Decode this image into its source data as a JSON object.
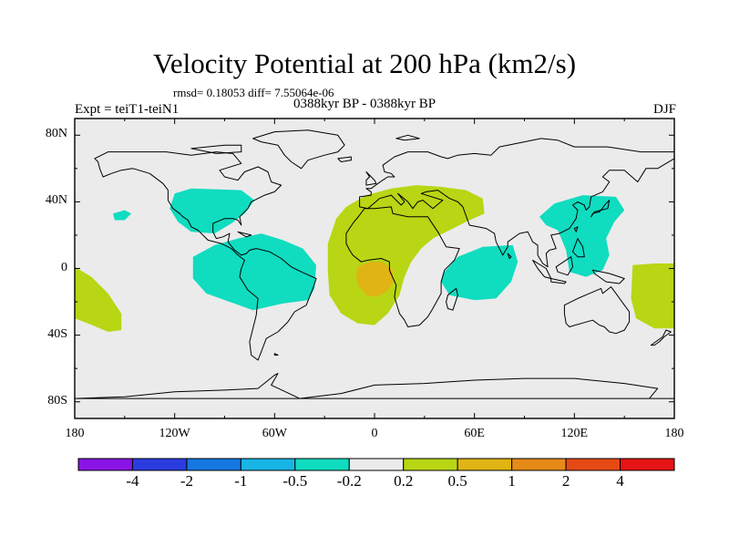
{
  "title": "Velocity Potential at 200 hPa (km2/s)",
  "stats_line": "rmsd= 0.18053 diff= 7.55064e-06",
  "experiment": "Expt = teiT1-teiN1",
  "period": "0388kyr BP - 0388kyr BP",
  "season": "DJF",
  "map": {
    "projection": "cylindrical equidistant",
    "lon_range": [
      -180,
      180
    ],
    "lat_range": [
      -90,
      90
    ],
    "lat_labels": [
      {
        "lat": 80,
        "text": "80N"
      },
      {
        "lat": 40,
        "text": "40N"
      },
      {
        "lat": 0,
        "text": "0"
      },
      {
        "lat": -40,
        "text": "40S"
      },
      {
        "lat": -80,
        "text": "80S"
      }
    ],
    "lon_labels": [
      {
        "lon": -180,
        "text": "180"
      },
      {
        "lon": -120,
        "text": "120W"
      },
      {
        "lon": -60,
        "text": "60W"
      },
      {
        "lon": 0,
        "text": "0"
      },
      {
        "lon": 60,
        "text": "60E"
      },
      {
        "lon": 120,
        "text": "120E"
      },
      {
        "lon": 180,
        "text": "180"
      }
    ],
    "background_color": "#ebebeb"
  },
  "colorbar": {
    "colors": [
      "#8a14e6",
      "#2a3ce0",
      "#1478e0",
      "#18b4e6",
      "#10dcc0",
      "#ebebeb",
      "#b8d614",
      "#e0b414",
      "#e68a18",
      "#e64a14",
      "#e61414"
    ],
    "labels": [
      "-4",
      "-2",
      "-1",
      "-0.5",
      "-0.2",
      "0.2",
      "0.5",
      "1",
      "2",
      "4"
    ]
  },
  "anomaly_regions": [
    {
      "name": "north-pacific-small",
      "level": "-0.2",
      "color": "#10dcc0",
      "polygon": [
        [
          -157,
          33
        ],
        [
          -150,
          35
        ],
        [
          -146,
          33
        ],
        [
          -150,
          29
        ],
        [
          -156,
          29
        ]
      ]
    },
    {
      "name": "north-atlantic-west",
      "level": "-0.2",
      "color": "#10dcc0",
      "polygon": [
        [
          -120,
          45
        ],
        [
          -110,
          48
        ],
        [
          -80,
          47
        ],
        [
          -72,
          41
        ],
        [
          -78,
          33
        ],
        [
          -86,
          27
        ],
        [
          -96,
          21
        ],
        [
          -110,
          22
        ],
        [
          -118,
          28
        ],
        [
          -123,
          36
        ]
      ]
    },
    {
      "name": "south-america-tropical",
      "level": "-0.2",
      "color": "#10dcc0",
      "polygon": [
        [
          -109,
          7
        ],
        [
          -96,
          14
        ],
        [
          -82,
          18
        ],
        [
          -68,
          21
        ],
        [
          -55,
          17
        ],
        [
          -43,
          12
        ],
        [
          -35,
          2
        ],
        [
          -36,
          -12
        ],
        [
          -40,
          -19
        ],
        [
          -55,
          -21
        ],
        [
          -73,
          -25
        ],
        [
          -87,
          -20
        ],
        [
          -101,
          -15
        ],
        [
          -109,
          -6
        ]
      ]
    },
    {
      "name": "east-pacific-positive",
      "level": "0.2",
      "color": "#b8d614",
      "polygon": [
        [
          -180,
          1
        ],
        [
          -170,
          -5
        ],
        [
          -160,
          -15
        ],
        [
          -152,
          -27
        ],
        [
          -152,
          -37
        ],
        [
          -160,
          -38
        ],
        [
          -172,
          -33
        ],
        [
          -180,
          -30
        ]
      ]
    },
    {
      "name": "dateline-positive",
      "level": "0.2",
      "color": "#b8d614",
      "polygon": [
        [
          155,
          2
        ],
        [
          168,
          3
        ],
        [
          180,
          3
        ],
        [
          180,
          -36
        ],
        [
          168,
          -36
        ],
        [
          157,
          -30
        ],
        [
          154,
          -18
        ]
      ]
    },
    {
      "name": "africa-positive",
      "level": "0.2",
      "color": "#b8d614",
      "polygon": [
        [
          -17,
          37
        ],
        [
          -5,
          44
        ],
        [
          10,
          48
        ],
        [
          25,
          50
        ],
        [
          40,
          49
        ],
        [
          55,
          47
        ],
        [
          65,
          42
        ],
        [
          66,
          33
        ],
        [
          55,
          28
        ],
        [
          45,
          23
        ],
        [
          35,
          18
        ],
        [
          28,
          12
        ],
        [
          22,
          4
        ],
        [
          18,
          -5
        ],
        [
          15,
          -16
        ],
        [
          8,
          -27
        ],
        [
          0,
          -34
        ],
        [
          -10,
          -33
        ],
        [
          -20,
          -27
        ],
        [
          -27,
          -16
        ],
        [
          -28,
          -2
        ],
        [
          -28,
          15
        ],
        [
          -23,
          30
        ]
      ]
    },
    {
      "name": "africa-core",
      "level": "0.5",
      "color": "#e0b414",
      "polygon": [
        [
          -10,
          1
        ],
        [
          -3,
          4
        ],
        [
          5,
          4
        ],
        [
          11,
          -1
        ],
        [
          11,
          -9
        ],
        [
          7,
          -14
        ],
        [
          1,
          -17
        ],
        [
          -5,
          -16
        ],
        [
          -10,
          -10
        ],
        [
          -11,
          -4
        ]
      ]
    },
    {
      "name": "indian-ocean-negative",
      "level": "-0.2",
      "color": "#10dcc0",
      "polygon": [
        [
          42,
          -2
        ],
        [
          50,
          7
        ],
        [
          65,
          13
        ],
        [
          83,
          14
        ],
        [
          86,
          4
        ],
        [
          82,
          -8
        ],
        [
          73,
          -18
        ],
        [
          60,
          -19
        ],
        [
          45,
          -16
        ],
        [
          40,
          -8
        ]
      ]
    },
    {
      "name": "west-pacific-negative",
      "level": "-0.2",
      "color": "#10dcc0",
      "polygon": [
        [
          99,
          31
        ],
        [
          108,
          39
        ],
        [
          125,
          44
        ],
        [
          145,
          43
        ],
        [
          150,
          35
        ],
        [
          144,
          28
        ],
        [
          139,
          18
        ],
        [
          141,
          8
        ],
        [
          137,
          -1
        ],
        [
          127,
          -5
        ],
        [
          117,
          -2
        ],
        [
          115,
          11
        ],
        [
          110,
          23
        ],
        [
          103,
          26
        ]
      ]
    }
  ]
}
